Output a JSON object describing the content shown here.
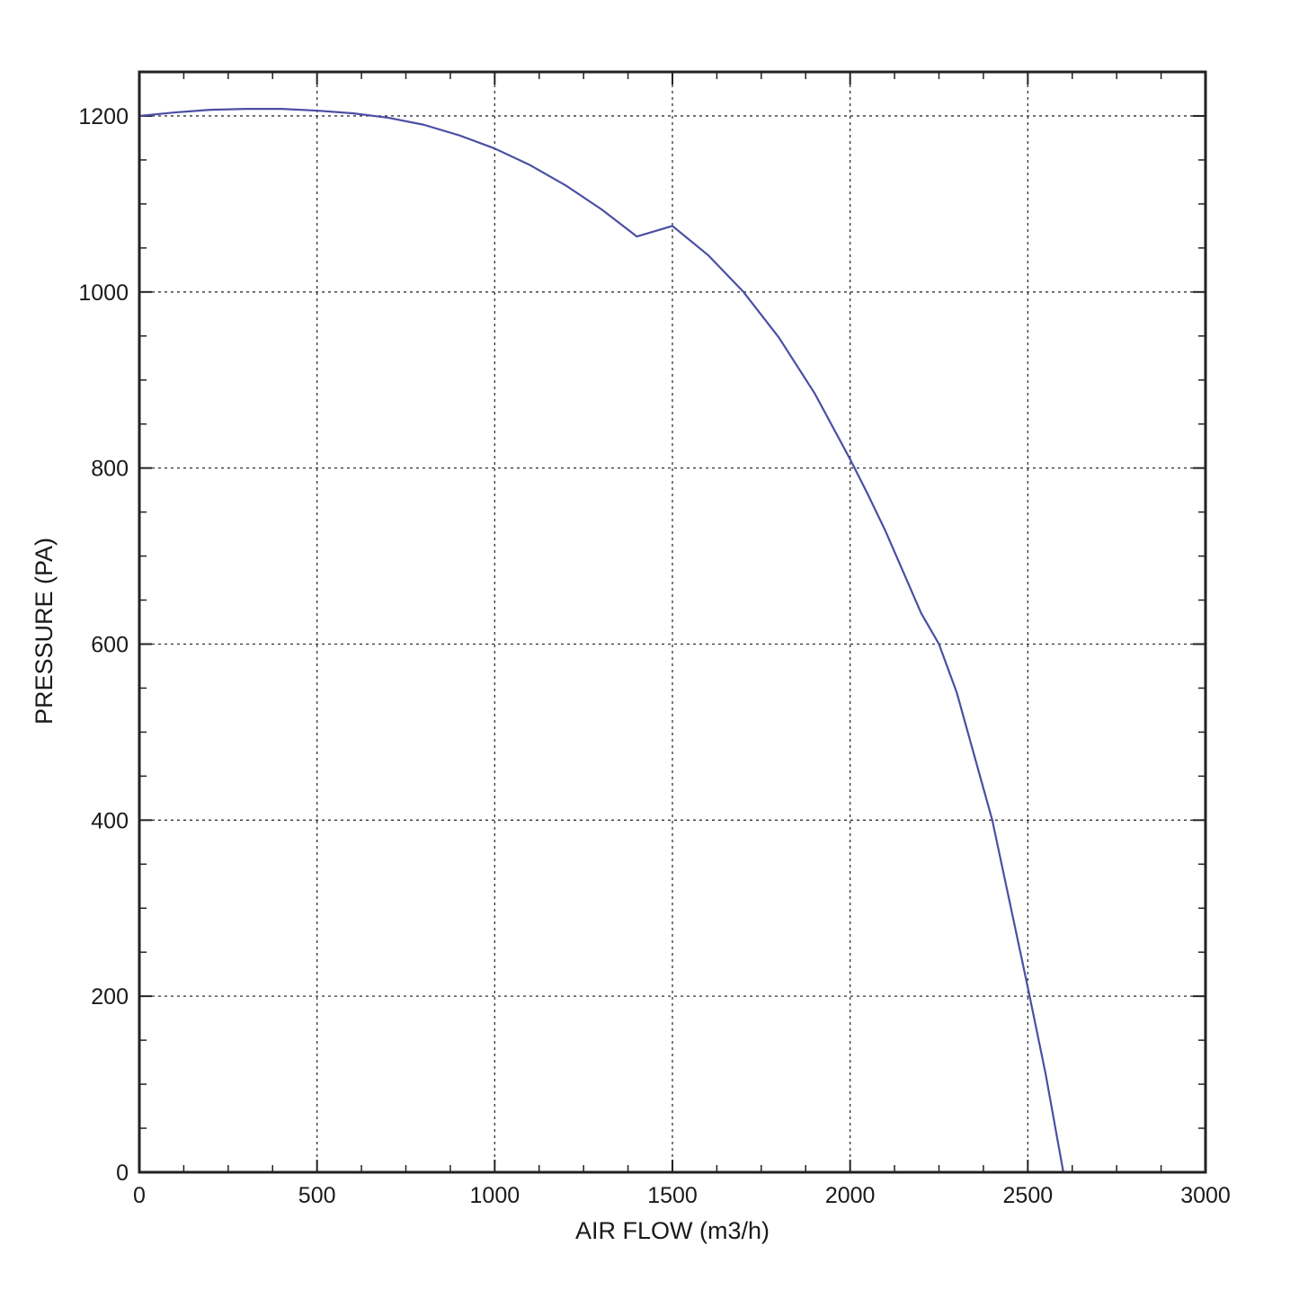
{
  "chart_data": {
    "type": "line",
    "title": "",
    "xlabel": "AIR FLOW (m3/h)",
    "ylabel": "PRESSURE (PA)",
    "xlim": [
      0,
      3000
    ],
    "ylim": [
      0,
      1250
    ],
    "x_ticks": [
      0,
      500,
      1000,
      1500,
      2000,
      2500,
      3000
    ],
    "x_tick_labels": [
      "0",
      "500",
      "1000",
      "1500",
      "2000",
      "2500",
      "3000"
    ],
    "y_ticks": [
      0,
      200,
      400,
      600,
      800,
      1000,
      1200
    ],
    "y_tick_labels": [
      "0",
      "200",
      "400",
      "600",
      "800",
      "1000",
      "1200"
    ],
    "x_minor_step": 125,
    "y_minor_step": 50,
    "grid": true,
    "grid_style": "dotted",
    "legend": "none",
    "series": [
      {
        "color": "#4a4fa3",
        "x": [
          0,
          100,
          200,
          300,
          350,
          400,
          500,
          600,
          700,
          800,
          900,
          1000,
          1100,
          1200,
          1300,
          1400,
          1500,
          1600,
          1700,
          1800,
          1900,
          2000,
          2050,
          2100,
          2200,
          2250,
          2300,
          2400,
          2500,
          2550,
          2600
        ],
        "y": [
          1200,
          1204,
          1207,
          1208,
          1208,
          1208,
          1206,
          1203,
          1198,
          1190,
          1178,
          1163,
          1144,
          1121,
          1094,
          1063,
          1075,
          1042,
          1000,
          948,
          885,
          810,
          770,
          728,
          635,
          600,
          545,
          400,
          210,
          112,
          0
        ]
      }
    ]
  }
}
